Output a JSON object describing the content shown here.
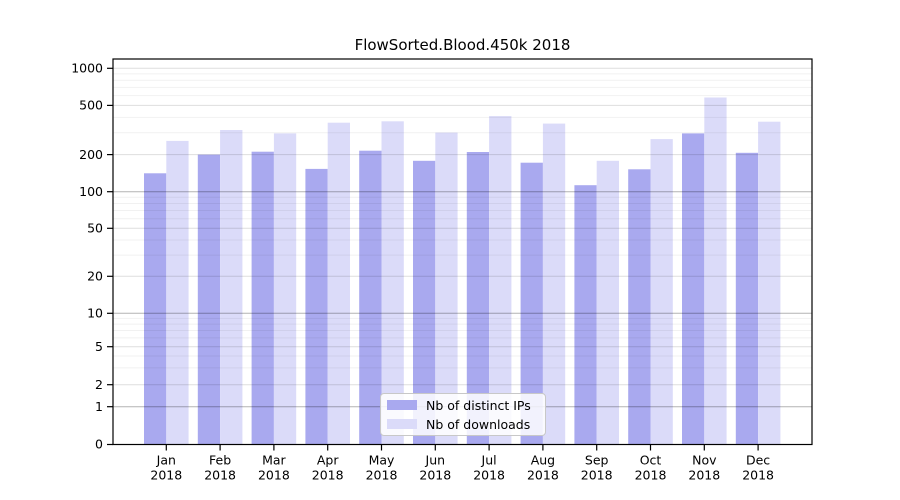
{
  "chart_data": {
    "type": "bar",
    "title": "FlowSorted.Blood.450k 2018",
    "categories": [
      "Jan 2018",
      "Feb 2018",
      "Mar 2018",
      "Apr 2018",
      "May 2018",
      "Jun 2018",
      "Jul 2018",
      "Aug 2018",
      "Sep 2018",
      "Oct 2018",
      "Nov 2018",
      "Dec 2018"
    ],
    "months": [
      "Jan",
      "Feb",
      "Mar",
      "Apr",
      "May",
      "Jun",
      "Jul",
      "Aug",
      "Sep",
      "Oct",
      "Nov",
      "Dec"
    ],
    "year_label": "2018",
    "series": [
      {
        "name": "Nb of distinct IPs",
        "color": "#a9a9ef",
        "values": [
          141,
          200,
          211,
          153,
          215,
          178,
          210,
          172,
          113,
          152,
          297,
          207
        ]
      },
      {
        "name": "Nb of downloads",
        "color": "#dbdbf9",
        "values": [
          258,
          316,
          297,
          362,
          372,
          301,
          410,
          356,
          178,
          267,
          580,
          369
        ]
      }
    ],
    "y_ticks": [
      0,
      1,
      2,
      5,
      10,
      20,
      50,
      100,
      200,
      500,
      1000
    ],
    "xlabel": "",
    "ylabel": "",
    "y_scale": "log-like (labeled 0,1,2,5,...,1000; linear segment 0-1)",
    "grid": "horizontal major and faint minor gridlines",
    "legend_position": "lower center inside plot"
  }
}
